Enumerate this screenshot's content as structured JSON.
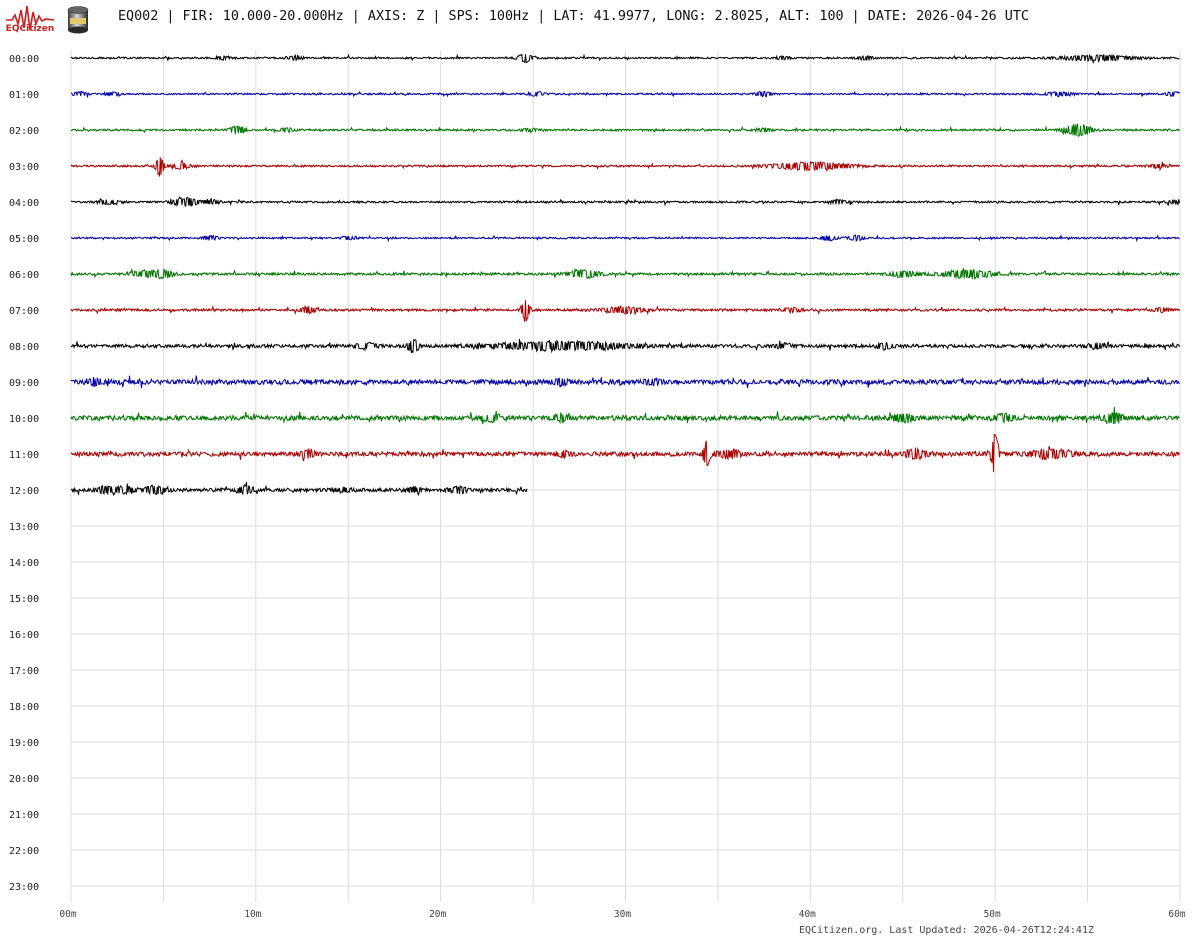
{
  "header": {
    "logo_text": "EQCitizen",
    "title": "EQ002 | FIR: 10.000-20.000Hz | AXIS: Z | SPS: 100Hz | LAT: 41.9977, LONG: 2.8025, ALT: 100 | DATE: 2026-04-26 UTC"
  },
  "footer": {
    "text": "EQCitizen.org. Last Updated: 2026-04-26T12:24:41Z"
  },
  "chart_data": {
    "type": "line",
    "title": "",
    "xlabel": "",
    "ylabel": "",
    "x_unit": "minutes",
    "xlim": [
      0,
      60
    ],
    "x_ticks": [
      {
        "value": 0,
        "label": "00m"
      },
      {
        "value": 10,
        "label": "10m"
      },
      {
        "value": 20,
        "label": "20m"
      },
      {
        "value": 30,
        "label": "30m"
      },
      {
        "value": 40,
        "label": "40m"
      },
      {
        "value": 50,
        "label": "50m"
      },
      {
        "value": 60,
        "label": "60m"
      }
    ],
    "grid": true,
    "colors": [
      "#000000",
      "#0000aa",
      "#007700",
      "#aa0000"
    ],
    "rows": [
      {
        "label": "00:00",
        "start": 0,
        "end": 60,
        "color": "#000000",
        "noise": 0.8,
        "events": [
          [
            8.2,
            1.5,
            0.3
          ],
          [
            12.1,
            2,
            0.3
          ],
          [
            24.6,
            4,
            0.3
          ],
          [
            38.5,
            1.5,
            0.3
          ],
          [
            43,
            2,
            0.3
          ],
          [
            55.5,
            2.5,
            1.5
          ]
        ]
      },
      {
        "label": "01:00",
        "start": 0,
        "end": 60,
        "color": "#0000aa",
        "noise": 0.8,
        "events": [
          [
            0.5,
            2,
            0.3
          ],
          [
            2.2,
            2,
            0.3
          ],
          [
            25.2,
            2,
            0.3
          ],
          [
            37.5,
            2.5,
            0.3
          ],
          [
            53.5,
            2,
            0.5
          ],
          [
            59.6,
            2,
            0.3
          ]
        ]
      },
      {
        "label": "02:00",
        "start": 0,
        "end": 60,
        "color": "#007700",
        "noise": 0.9,
        "events": [
          [
            9,
            4,
            0.3
          ],
          [
            11.7,
            2,
            0.3
          ],
          [
            24.8,
            1.5,
            0.3
          ],
          [
            37.5,
            1.5,
            0.3
          ],
          [
            54.5,
            6,
            0.5
          ]
        ]
      },
      {
        "label": "03:00",
        "start": 0,
        "end": 60,
        "color": "#aa0000",
        "noise": 0.9,
        "events": [
          [
            4.8,
            11,
            0.15
          ],
          [
            6,
            3,
            0.3
          ],
          [
            40,
            4,
            1.4
          ],
          [
            58.8,
            2,
            0.3
          ]
        ]
      },
      {
        "label": "04:00",
        "start": 0,
        "end": 60,
        "color": "#000000",
        "noise": 0.9,
        "events": [
          [
            2,
            2,
            0.4
          ],
          [
            6.2,
            4,
            0.5
          ],
          [
            7.6,
            2,
            0.3
          ],
          [
            41.5,
            2,
            0.3
          ],
          [
            59.8,
            2,
            0.3
          ]
        ]
      },
      {
        "label": "05:00",
        "start": 0,
        "end": 60,
        "color": "#0000aa",
        "noise": 0.8,
        "events": [
          [
            7.6,
            2,
            0.3
          ],
          [
            15,
            1.5,
            0.3
          ],
          [
            41,
            2.5,
            0.3
          ],
          [
            42.5,
            2.5,
            0.3
          ]
        ]
      },
      {
        "label": "06:00",
        "start": 0,
        "end": 60,
        "color": "#007700",
        "noise": 1.1,
        "events": [
          [
            3.9,
            3,
            0.5
          ],
          [
            5,
            4,
            0.4
          ],
          [
            27.8,
            4,
            0.6
          ],
          [
            45,
            3,
            0.5
          ],
          [
            48.5,
            4,
            1
          ]
        ]
      },
      {
        "label": "07:00",
        "start": 0,
        "end": 60,
        "color": "#aa0000",
        "noise": 1.1,
        "events": [
          [
            12.8,
            3,
            0.3
          ],
          [
            24.6,
            13,
            0.15
          ],
          [
            29.9,
            3,
            0.8
          ],
          [
            39,
            2,
            0.3
          ],
          [
            59,
            2,
            0.3
          ]
        ]
      },
      {
        "label": "08:00",
        "start": 0,
        "end": 60,
        "color": "#000000",
        "noise": 1.5,
        "events": [
          [
            16,
            3,
            0.4
          ],
          [
            18.5,
            7,
            0.2
          ],
          [
            26.5,
            4,
            2.5
          ],
          [
            38.5,
            2,
            0.3
          ],
          [
            44,
            3,
            0.3
          ],
          [
            55.5,
            2.5,
            0.3
          ]
        ]
      },
      {
        "label": "09:00",
        "start": 0,
        "end": 60,
        "color": "#0000aa",
        "noise": 2.2,
        "events": [
          [
            1.3,
            3,
            0.3
          ],
          [
            26.5,
            3,
            0.3
          ],
          [
            31.5,
            2.5,
            0.3
          ]
        ]
      },
      {
        "label": "10:00",
        "start": 0,
        "end": 60,
        "color": "#007700",
        "noise": 2.2,
        "events": [
          [
            22.7,
            3.5,
            0.3
          ],
          [
            26.5,
            3,
            0.3
          ],
          [
            45,
            3.5,
            0.4
          ],
          [
            50.5,
            3.5,
            0.3
          ],
          [
            56.4,
            4.5,
            0.4
          ]
        ]
      },
      {
        "label": "11:00",
        "start": 0,
        "end": 60,
        "color": "#aa0000",
        "noise": 2.0,
        "events": [
          [
            12.8,
            3.5,
            0.3
          ],
          [
            26.7,
            3,
            0.3
          ],
          [
            34.4,
            16,
            0.12
          ],
          [
            35.6,
            4,
            0.4
          ],
          [
            45.7,
            4.5,
            0.4
          ],
          [
            50,
            25,
            0.12
          ],
          [
            53,
            4,
            0.8
          ]
        ]
      },
      {
        "label": "12:00",
        "start": 0,
        "end": 24.68,
        "color": "#000000",
        "noise": 1.6,
        "events": [
          [
            1.8,
            3,
            0.3
          ],
          [
            2.8,
            3,
            0.5
          ],
          [
            4.6,
            4,
            0.4
          ],
          [
            9.4,
            4,
            0.3
          ],
          [
            14.8,
            2,
            0.3
          ],
          [
            18.5,
            2.5,
            0.3
          ],
          [
            21,
            3,
            0.3
          ]
        ]
      },
      {
        "label": "13:00",
        "start": 0,
        "end": 0
      },
      {
        "label": "14:00",
        "start": 0,
        "end": 0
      },
      {
        "label": "15:00",
        "start": 0,
        "end": 0
      },
      {
        "label": "16:00",
        "start": 0,
        "end": 0
      },
      {
        "label": "17:00",
        "start": 0,
        "end": 0
      },
      {
        "label": "18:00",
        "start": 0,
        "end": 0
      },
      {
        "label": "19:00",
        "start": 0,
        "end": 0
      },
      {
        "label": "20:00",
        "start": 0,
        "end": 0
      },
      {
        "label": "21:00",
        "start": 0,
        "end": 0
      },
      {
        "label": "22:00",
        "start": 0,
        "end": 0
      },
      {
        "label": "23:00",
        "start": 0,
        "end": 0
      }
    ]
  }
}
